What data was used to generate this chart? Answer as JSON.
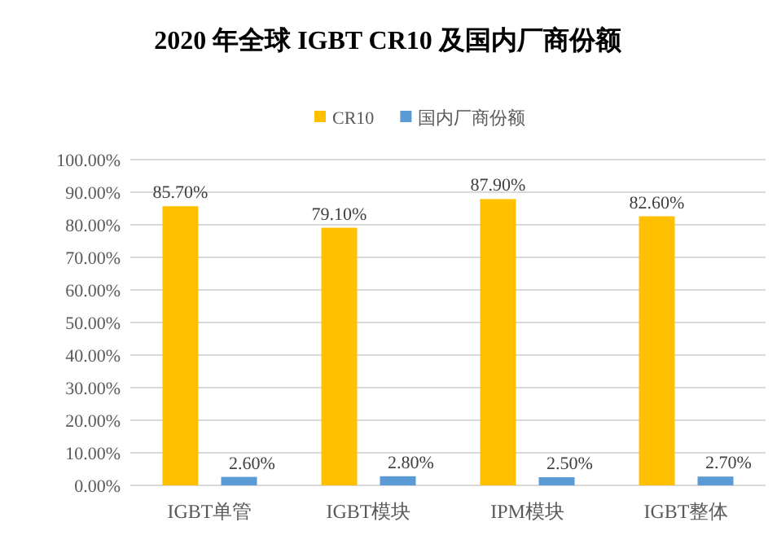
{
  "chart_data": {
    "type": "bar",
    "title": "2020 年全球 IGBT CR10 及国内厂商份额",
    "categories": [
      "IGBT单管",
      "IGBT模块",
      "IPM模块",
      "IGBT整体"
    ],
    "series": [
      {
        "name": "CR10",
        "color": "#ffc000",
        "values": [
          85.7,
          79.1,
          87.9,
          82.6
        ],
        "value_labels": [
          "85.70%",
          "79.10%",
          "87.90%",
          "82.60%"
        ]
      },
      {
        "name": "国内厂商份额",
        "color": "#5b9bd5",
        "values": [
          2.6,
          2.8,
          2.5,
          2.7
        ],
        "value_labels": [
          "2.60%",
          "2.80%",
          "2.50%",
          "2.70%"
        ]
      }
    ],
    "ylim": [
      0,
      100
    ],
    "yticks": [
      {
        "value": 0,
        "label": "0.00%"
      },
      {
        "value": 10,
        "label": "10.00%"
      },
      {
        "value": 20,
        "label": "20.00%"
      },
      {
        "value": 30,
        "label": "30.00%"
      },
      {
        "value": 40,
        "label": "40.00%"
      },
      {
        "value": 50,
        "label": "50.00%"
      },
      {
        "value": 60,
        "label": "60.00%"
      },
      {
        "value": 70,
        "label": "70.00%"
      },
      {
        "value": 80,
        "label": "80.00%"
      },
      {
        "value": 90,
        "label": "90.00%"
      },
      {
        "value": 100,
        "label": "100.00%"
      }
    ],
    "grid": "y",
    "legend": "top"
  }
}
